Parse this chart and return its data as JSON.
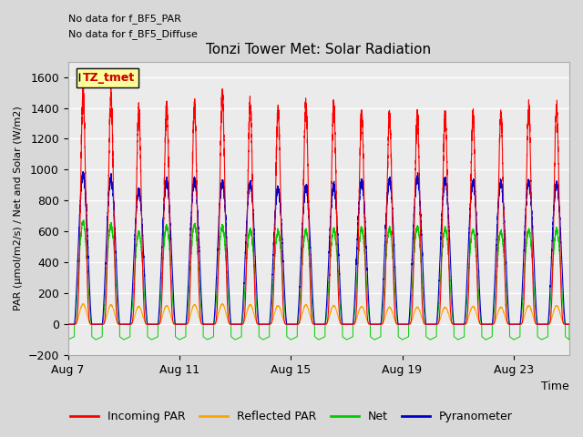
{
  "title": "Tonzi Tower Met: Solar Radiation",
  "xlabel": "Time",
  "ylabel": "PAR (μmol/m2/s) / Net and Solar (W/m2)",
  "ylim": [
    -200,
    1700
  ],
  "yticks": [
    -200,
    0,
    200,
    400,
    600,
    800,
    1000,
    1200,
    1400,
    1600
  ],
  "x_tick_positions": [
    7,
    11,
    15,
    19,
    23
  ],
  "x_tick_labels": [
    "Aug 7",
    "Aug 11",
    "Aug 15",
    "Aug 19",
    "Aug 23"
  ],
  "annotation_lines": [
    "No data for f_BF5_PAR",
    "No data for f_BF5_Diffuse"
  ],
  "legend_label_box": "TZ_tmet",
  "legend_entries": [
    "Incoming PAR",
    "Reflected PAR",
    "Net",
    "Pyranometer"
  ],
  "legend_colors": [
    "#ff0000",
    "#ffa500",
    "#00cc00",
    "#0000cc"
  ],
  "bg_color": "#d8d8d8",
  "plot_bg_color": "#ebebeb",
  "n_days": 18,
  "day_start": 7,
  "figsize": [
    6.4,
    4.8
  ],
  "dpi": 100
}
